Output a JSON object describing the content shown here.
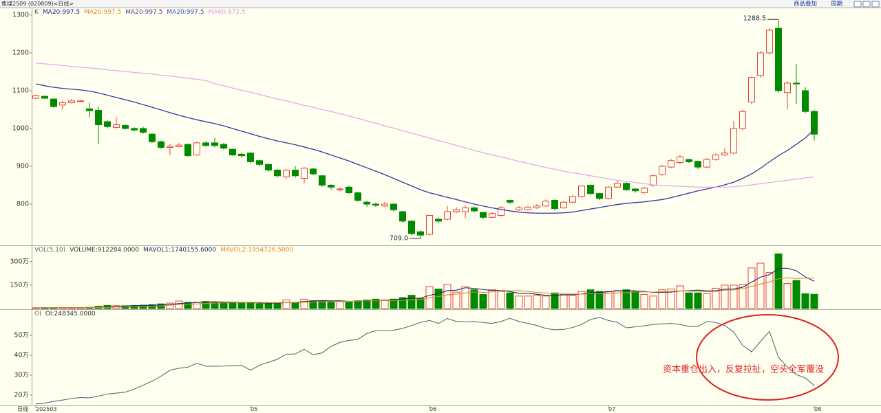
{
  "header": {
    "title": "焦煤2509 (020809)<日线>",
    "buttons": [
      "商品叠加",
      "周期"
    ]
  },
  "x_axis": {
    "period_label": "日线"
  },
  "chart_data": [
    {
      "type": "candlestick",
      "legend": [
        {
          "text": "K",
          "color": "#555555"
        },
        {
          "text": "MA20:997.5",
          "color": "#1a1a8a"
        },
        {
          "text": "MA20:997.5",
          "color": "#e08a2a"
        },
        {
          "text": "MA20:997.5",
          "color": "#5a3aa0"
        },
        {
          "text": "MA20:997.5",
          "color": "#3050c0"
        },
        {
          "text": "MA60:872.5",
          "color": "#e0a0e0"
        }
      ],
      "categories": [
        "202503",
        null,
        null,
        null,
        null,
        null,
        null,
        null,
        null,
        null,
        null,
        null,
        null,
        null,
        null,
        null,
        null,
        null,
        null,
        null,
        null,
        null,
        null,
        null,
        "05",
        null,
        null,
        null,
        null,
        null,
        null,
        null,
        null,
        null,
        null,
        null,
        null,
        null,
        null,
        null,
        null,
        null,
        null,
        null,
        "06",
        null,
        null,
        null,
        null,
        null,
        null,
        null,
        null,
        null,
        null,
        null,
        null,
        null,
        null,
        null,
        null,
        null,
        null,
        null,
        "07",
        null,
        null,
        null,
        null,
        null,
        null,
        null,
        null,
        null,
        null,
        null,
        null,
        null,
        null,
        null,
        null,
        null,
        null,
        null,
        null,
        null,
        null,
        "08"
      ],
      "open": [
        1080,
        1085,
        1078,
        1062,
        1068,
        1072,
        1052,
        1048,
        1018,
        1003,
        1008,
        1000,
        1000,
        985,
        965,
        950,
        952,
        958,
        930,
        962,
        962,
        958,
        945,
        932,
        935,
        915,
        905,
        890,
        872,
        890,
        868,
        893,
        875,
        850,
        838,
        845,
        830,
        805,
        800,
        795,
        800,
        780,
        755,
        727,
        720,
        760,
        760,
        780,
        780,
        790,
        778,
        765,
        770,
        810,
        785,
        785,
        790,
        795,
        810,
        790,
        805,
        820,
        850,
        828,
        815,
        845,
        855,
        840,
        830,
        850,
        878,
        898,
        910,
        918,
        913,
        898,
        918,
        930,
        935,
        1000,
        1070,
        1140,
        1200,
        1265,
        1095,
        1120,
        1100,
        1045
      ],
      "high": [
        1090,
        1088,
        1079,
        1075,
        1078,
        1076,
        1068,
        1058,
        1022,
        1030,
        1012,
        1003,
        1004,
        988,
        968,
        960,
        962,
        960,
        965,
        966,
        975,
        962,
        947,
        936,
        938,
        918,
        908,
        893,
        893,
        900,
        898,
        896,
        878,
        853,
        845,
        848,
        833,
        809,
        804,
        806,
        803,
        782,
        758,
        730,
        772,
        765,
        795,
        792,
        796,
        794,
        780,
        779,
        795,
        812,
        795,
        796,
        800,
        812,
        813,
        808,
        824,
        850,
        852,
        830,
        848,
        862,
        858,
        843,
        846,
        878,
        904,
        920,
        930,
        920,
        915,
        922,
        935,
        948,
        1020,
        1050,
        1138,
        1205,
        1265,
        1288.5,
        1125,
        1170,
        1110,
        1050
      ],
      "low": [
        1077,
        1078,
        1055,
        1050,
        1066,
        1070,
        1030,
        958,
        1000,
        1000,
        997,
        992,
        986,
        962,
        946,
        930,
        950,
        925,
        928,
        952,
        950,
        944,
        927,
        922,
        908,
        900,
        886,
        870,
        868,
        870,
        855,
        876,
        846,
        838,
        834,
        827,
        806,
        793,
        792,
        792,
        780,
        751,
        718,
        709,
        717,
        750,
        757,
        776,
        762,
        778,
        760,
        763,
        767,
        800,
        782,
        783,
        787,
        793,
        784,
        787,
        802,
        817,
        825,
        810,
        812,
        842,
        835,
        830,
        826,
        846,
        875,
        895,
        906,
        908,
        892,
        895,
        915,
        927,
        932,
        995,
        1065,
        1135,
        1195,
        1095,
        1050,
        1065,
        1040,
        968
      ],
      "close": [
        1087,
        1080,
        1058,
        1068,
        1073,
        1073,
        1047,
        1010,
        1005,
        1010,
        1000,
        996,
        990,
        965,
        950,
        953,
        956,
        928,
        962,
        955,
        955,
        948,
        930,
        928,
        912,
        905,
        890,
        875,
        890,
        875,
        895,
        880,
        850,
        845,
        840,
        830,
        810,
        800,
        797,
        800,
        785,
        755,
        722,
        718,
        770,
        755,
        780,
        785,
        790,
        782,
        765,
        775,
        790,
        805,
        790,
        792,
        795,
        808,
        788,
        805,
        820,
        848,
        828,
        815,
        845,
        855,
        838,
        835,
        842,
        875,
        900,
        915,
        925,
        912,
        898,
        918,
        930,
        935,
        1000,
        1045,
        1135,
        1200,
        1260,
        1100,
        1120,
        1118,
        1045,
        985
      ],
      "up_color": "#e8403a",
      "down_color": "#008a00",
      "lines": [
        {
          "color": "#40309a",
          "values": [
            1118,
            1113,
            1109,
            1106,
            1104,
            1102,
            1099,
            1094,
            1088,
            1082,
            1076,
            1070,
            1063,
            1056,
            1049,
            1042,
            1035,
            1029,
            1023,
            1018,
            1013,
            1007,
            1000,
            993,
            986,
            979,
            973,
            967,
            962,
            957,
            951,
            945,
            938,
            930,
            922,
            914,
            905,
            896,
            887,
            878,
            868,
            858,
            848,
            838,
            830,
            824,
            818,
            812,
            806,
            800,
            795,
            790,
            786,
            782,
            779,
            777,
            776,
            776,
            776,
            777,
            779,
            783,
            787,
            791,
            795,
            799,
            802,
            804,
            806,
            809,
            812,
            817,
            823,
            829,
            835,
            840,
            845,
            851,
            858,
            868,
            880,
            895,
            912,
            928,
            942,
            958,
            975,
            997
          ]
        },
        {
          "color": "#e6a8e6",
          "values": [
            1173,
            1171,
            1169,
            1167,
            1164,
            1162,
            1160,
            1158,
            1155,
            1153,
            1151,
            1148,
            1146,
            1144,
            1141,
            1139,
            1136,
            1133,
            1130,
            1127,
            1118,
            1113,
            1107,
            1101,
            1096,
            1090,
            1084,
            1078,
            1073,
            1067,
            1061,
            1056,
            1050,
            1045,
            1039,
            1033,
            1027,
            1020,
            1014,
            1007,
            1001,
            994,
            988,
            981,
            975,
            968,
            962,
            955,
            949,
            942,
            936,
            930,
            925,
            919,
            913,
            908,
            902,
            897,
            892,
            887,
            883,
            879,
            875,
            871,
            867,
            863,
            860,
            857,
            854,
            851,
            849,
            848,
            847,
            846,
            845,
            845,
            845,
            845,
            846,
            848,
            851,
            854,
            857,
            860,
            863,
            866,
            869,
            872
          ]
        }
      ],
      "annotations": [
        {
          "label": "1288.5",
          "value": 1288.5
        },
        {
          "label": "709.0",
          "value": 709
        }
      ],
      "note": "资本重仓出入，反复拉扯，空头全军覆没",
      "ylim": [
        691,
        1318
      ],
      "yticks": [
        800,
        900,
        1000,
        1100,
        1200,
        1300
      ]
    },
    {
      "type": "bar",
      "legend": [
        {
          "text": "VOL(5,10)",
          "color": "#666666"
        },
        {
          "text": "VOLUME:912284.0000",
          "color": "#333333"
        },
        {
          "text": "MAVOL1:1740155.6000",
          "color": "#1a2a6a"
        },
        {
          "text": "MAVOL2:1954726.5000",
          "color": "#e08a2a"
        }
      ],
      "values": [
        5,
        6,
        6,
        7,
        5,
        5,
        8,
        15,
        20,
        18,
        18,
        20,
        22,
        25,
        30,
        35,
        48,
        40,
        40,
        45,
        42,
        40,
        38,
        35,
        35,
        30,
        35,
        38,
        55,
        40,
        60,
        50,
        50,
        45,
        45,
        40,
        50,
        55,
        60,
        55,
        60,
        70,
        85,
        65,
        140,
        125,
        155,
        105,
        140,
        120,
        90,
        120,
        110,
        100,
        80,
        80,
        85,
        80,
        100,
        90,
        85,
        110,
        120,
        110,
        110,
        115,
        120,
        110,
        90,
        80,
        120,
        125,
        145,
        100,
        100,
        95,
        130,
        150,
        150,
        155,
        260,
        290,
        230,
        350,
        160,
        180,
        95,
        91.2
      ],
      "lines": [
        {
          "color": "#1a2a6a",
          "values": [
            5,
            5.5,
            5.7,
            6,
            5.8,
            5.8,
            6.2,
            8,
            10.6,
            13.2,
            15.8,
            18.2,
            19.6,
            20.6,
            23,
            26.4,
            32,
            35.6,
            38.6,
            41.6,
            43,
            41.4,
            41,
            40,
            38,
            35.6,
            34.6,
            34.6,
            38.6,
            39.6,
            45.6,
            48.6,
            51,
            49,
            50,
            46,
            46,
            47,
            50,
            52,
            56,
            60,
            66,
            67,
            84,
            97,
            114,
            118,
            133,
            129,
            122,
            115,
            116,
            108,
            98,
            98,
            91,
            85,
            85,
            87,
            88,
            93,
            101,
            103,
            107,
            113,
            115,
            113,
            109,
            103,
            104,
            105,
            112,
            114,
            118,
            113,
            114,
            124,
            125,
            136,
            169,
            201,
            217,
            257,
            258,
            242,
            203,
            174
          ]
        },
        {
          "color": "#e08a2a",
          "values": [
            5,
            5.5,
            5.7,
            6,
            5.8,
            5.8,
            6,
            7,
            8,
            9.5,
            10.8,
            12.2,
            13.8,
            15.3,
            17.4,
            21,
            25.8,
            28,
            29.6,
            32.3,
            34.7,
            36.7,
            38.5,
            39.3,
            39.8,
            39.3,
            38,
            37.8,
            39.3,
            38.8,
            40.6,
            41.6,
            42.8,
            43.8,
            44.8,
            45.8,
            47.3,
            49,
            49.5,
            51,
            51,
            53,
            56.5,
            58.5,
            68,
            76.5,
            87,
            92,
            99.5,
            106,
            103,
            106,
            117,
            113,
            115,
            110,
            103,
            100,
            96,
            93,
            93,
            92,
            96,
            94,
            96,
            100,
            101,
            107,
            106,
            105,
            108,
            110,
            113,
            111,
            110,
            108,
            109,
            118,
            119,
            127,
            141,
            157,
            170,
            190,
            197,
            192,
            194,
            195
          ]
        }
      ],
      "ylim": [
        0,
        400
      ],
      "yticks": [
        {
          "value": 150,
          "label": "150万"
        },
        {
          "value": 300,
          "label": "300万"
        }
      ]
    },
    {
      "type": "line",
      "legend": [
        {
          "text": "OI",
          "color": "#666666"
        },
        {
          "text": "OI:248345.0000",
          "color": "#333333"
        }
      ],
      "color": "#5a6a7a",
      "values": [
        15.5,
        16,
        16.8,
        17.5,
        18.3,
        18.8,
        18.6,
        19.5,
        20.5,
        21,
        21.5,
        23,
        25,
        27,
        29.5,
        32.5,
        33.5,
        34,
        36,
        34.5,
        34.5,
        34.6,
        34.8,
        35,
        32.5,
        35,
        36.5,
        38,
        40.5,
        40.7,
        43,
        40.3,
        41.2,
        44.5,
        46.5,
        47.5,
        48,
        51,
        52.4,
        52.4,
        52.6,
        53.5,
        55,
        56.5,
        57.5,
        56,
        58.5,
        57,
        56.8,
        57,
        56.5,
        56,
        57,
        58.6,
        57,
        56,
        55,
        53.5,
        52.8,
        53,
        54,
        55.5,
        58,
        59,
        57.5,
        56.5,
        53.8,
        54.3,
        54.8,
        55.5,
        55.8,
        56,
        55.5,
        54.5,
        54.5,
        57,
        56.5,
        55,
        51.7,
        45,
        41.7,
        47,
        52,
        39,
        34,
        30.3,
        28.6,
        24.8345
      ],
      "ylim": [
        14.8,
        62.8
      ],
      "yticks": [
        {
          "value": 20,
          "label": "20万"
        },
        {
          "value": 30,
          "label": "30万"
        },
        {
          "value": 40,
          "label": "40万"
        },
        {
          "value": 50,
          "label": "50万"
        }
      ]
    }
  ]
}
